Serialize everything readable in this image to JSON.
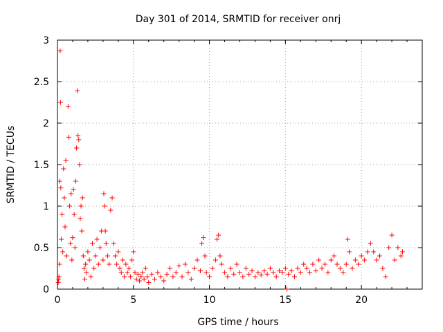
{
  "chart_data": {
    "type": "scatter",
    "title": "Day 301 of 2014, SRMTID for receiver onrj",
    "xlabel": "GPS time / hours",
    "ylabel": "SRMTID / TECUs",
    "xlim": [
      0,
      24
    ],
    "ylim": [
      0,
      3
    ],
    "xticks": [
      0,
      5,
      10,
      15,
      20
    ],
    "yticks": [
      0,
      0.5,
      1,
      1.5,
      2,
      2.5,
      3
    ],
    "xtick_labels": [
      "0",
      "5",
      "10",
      "15",
      "20"
    ],
    "ytick_labels": [
      "0",
      "0.5",
      "1",
      "1.5",
      "2",
      "2.5",
      "3"
    ],
    "grid": true,
    "marker": "plus",
    "color": "#ff0000",
    "series": [
      {
        "name": "SRMTID",
        "points": [
          [
            0.05,
            0.08
          ],
          [
            0.08,
            0.12
          ],
          [
            0.1,
            0.15
          ],
          [
            0.12,
            0.3
          ],
          [
            0.15,
            1.3
          ],
          [
            0.18,
            2.87
          ],
          [
            0.2,
            2.25
          ],
          [
            0.22,
            1.22
          ],
          [
            0.25,
            0.6
          ],
          [
            0.3,
            0.9
          ],
          [
            0.35,
            0.45
          ],
          [
            0.4,
            1.45
          ],
          [
            0.45,
            1.1
          ],
          [
            0.5,
            0.75
          ],
          [
            0.55,
            1.55
          ],
          [
            0.6,
            0.4
          ],
          [
            0.7,
            2.2
          ],
          [
            0.75,
            1.83
          ],
          [
            0.8,
            1.0
          ],
          [
            0.85,
            0.55
          ],
          [
            0.9,
            1.15
          ],
          [
            0.95,
            0.35
          ],
          [
            1.0,
            0.62
          ],
          [
            1.05,
            1.2
          ],
          [
            1.1,
            0.9
          ],
          [
            1.15,
            0.5
          ],
          [
            1.2,
            1.3
          ],
          [
            1.25,
            1.7
          ],
          [
            1.3,
            2.39
          ],
          [
            1.35,
            1.85
          ],
          [
            1.4,
            1.8
          ],
          [
            1.45,
            1.5
          ],
          [
            1.5,
            0.85
          ],
          [
            1.55,
            1.0
          ],
          [
            1.6,
            0.7
          ],
          [
            1.65,
            1.1
          ],
          [
            1.7,
            0.4
          ],
          [
            1.75,
            0.25
          ],
          [
            1.8,
            0.12
          ],
          [
            1.85,
            0.3
          ],
          [
            1.9,
            0.2
          ],
          [
            2.0,
            0.45
          ],
          [
            2.1,
            0.35
          ],
          [
            2.2,
            0.15
          ],
          [
            2.3,
            0.55
          ],
          [
            2.4,
            0.25
          ],
          [
            2.5,
            0.4
          ],
          [
            2.6,
            0.6
          ],
          [
            2.7,
            0.3
          ],
          [
            2.8,
            0.5
          ],
          [
            2.9,
            0.7
          ],
          [
            3.0,
            0.35
          ],
          [
            3.05,
            1.15
          ],
          [
            3.1,
            1.0
          ],
          [
            3.15,
            0.7
          ],
          [
            3.2,
            0.55
          ],
          [
            3.3,
            0.4
          ],
          [
            3.4,
            0.3
          ],
          [
            3.5,
            0.95
          ],
          [
            3.6,
            1.1
          ],
          [
            3.7,
            0.55
          ],
          [
            3.8,
            0.4
          ],
          [
            3.9,
            0.3
          ],
          [
            4.0,
            0.45
          ],
          [
            4.1,
            0.25
          ],
          [
            4.2,
            0.2
          ],
          [
            4.3,
            0.35
          ],
          [
            4.4,
            0.15
          ],
          [
            4.5,
            0.3
          ],
          [
            4.6,
            0.2
          ],
          [
            4.7,
            0.25
          ],
          [
            4.8,
            0.15
          ],
          [
            4.9,
            0.35
          ],
          [
            5.0,
            0.45
          ],
          [
            5.1,
            0.2
          ],
          [
            5.2,
            0.12
          ],
          [
            5.3,
            0.18
          ],
          [
            5.4,
            0.1
          ],
          [
            5.5,
            0.15
          ],
          [
            5.6,
            0.2
          ],
          [
            5.7,
            0.12
          ],
          [
            5.8,
            0.25
          ],
          [
            5.9,
            0.15
          ],
          [
            6.0,
            0.08
          ],
          [
            6.2,
            0.18
          ],
          [
            6.4,
            0.12
          ],
          [
            6.6,
            0.2
          ],
          [
            6.8,
            0.15
          ],
          [
            7.0,
            0.1
          ],
          [
            7.2,
            0.18
          ],
          [
            7.4,
            0.25
          ],
          [
            7.6,
            0.15
          ],
          [
            7.8,
            0.2
          ],
          [
            8.0,
            0.28
          ],
          [
            8.2,
            0.15
          ],
          [
            8.4,
            0.3
          ],
          [
            8.6,
            0.2
          ],
          [
            8.8,
            0.12
          ],
          [
            9.0,
            0.25
          ],
          [
            9.2,
            0.35
          ],
          [
            9.4,
            0.22
          ],
          [
            9.5,
            0.55
          ],
          [
            9.6,
            0.62
          ],
          [
            9.7,
            0.4
          ],
          [
            9.8,
            0.2
          ],
          [
            10.0,
            0.15
          ],
          [
            10.2,
            0.25
          ],
          [
            10.4,
            0.35
          ],
          [
            10.5,
            0.6
          ],
          [
            10.6,
            0.65
          ],
          [
            10.7,
            0.4
          ],
          [
            10.8,
            0.3
          ],
          [
            11.0,
            0.2
          ],
          [
            11.2,
            0.15
          ],
          [
            11.4,
            0.25
          ],
          [
            11.6,
            0.18
          ],
          [
            11.8,
            0.3
          ],
          [
            12.0,
            0.2
          ],
          [
            12.2,
            0.15
          ],
          [
            12.4,
            0.25
          ],
          [
            12.6,
            0.18
          ],
          [
            12.8,
            0.22
          ],
          [
            13.0,
            0.15
          ],
          [
            13.2,
            0.2
          ],
          [
            13.4,
            0.17
          ],
          [
            13.6,
            0.22
          ],
          [
            13.8,
            0.18
          ],
          [
            14.0,
            0.25
          ],
          [
            14.2,
            0.2
          ],
          [
            14.4,
            0.15
          ],
          [
            14.6,
            0.22
          ],
          [
            14.8,
            0.2
          ],
          [
            15.0,
            0.25
          ],
          [
            15.1,
            0.0
          ],
          [
            15.2,
            0.18
          ],
          [
            15.4,
            0.22
          ],
          [
            15.6,
            0.15
          ],
          [
            15.8,
            0.25
          ],
          [
            16.0,
            0.2
          ],
          [
            16.2,
            0.3
          ],
          [
            16.4,
            0.25
          ],
          [
            16.6,
            0.2
          ],
          [
            16.8,
            0.3
          ],
          [
            17.0,
            0.22
          ],
          [
            17.2,
            0.35
          ],
          [
            17.4,
            0.25
          ],
          [
            17.6,
            0.3
          ],
          [
            17.8,
            0.2
          ],
          [
            18.0,
            0.35
          ],
          [
            18.2,
            0.4
          ],
          [
            18.4,
            0.3
          ],
          [
            18.6,
            0.25
          ],
          [
            18.8,
            0.2
          ],
          [
            19.0,
            0.3
          ],
          [
            19.1,
            0.6
          ],
          [
            19.2,
            0.45
          ],
          [
            19.4,
            0.25
          ],
          [
            19.6,
            0.35
          ],
          [
            19.8,
            0.3
          ],
          [
            20.0,
            0.4
          ],
          [
            20.2,
            0.35
          ],
          [
            20.4,
            0.45
          ],
          [
            20.6,
            0.55
          ],
          [
            20.8,
            0.45
          ],
          [
            21.0,
            0.35
          ],
          [
            21.2,
            0.4
          ],
          [
            21.4,
            0.25
          ],
          [
            21.6,
            0.15
          ],
          [
            21.8,
            0.5
          ],
          [
            22.0,
            0.65
          ],
          [
            22.2,
            0.35
          ],
          [
            22.4,
            0.5
          ],
          [
            22.6,
            0.4
          ],
          [
            22.7,
            0.45
          ]
        ]
      }
    ]
  }
}
